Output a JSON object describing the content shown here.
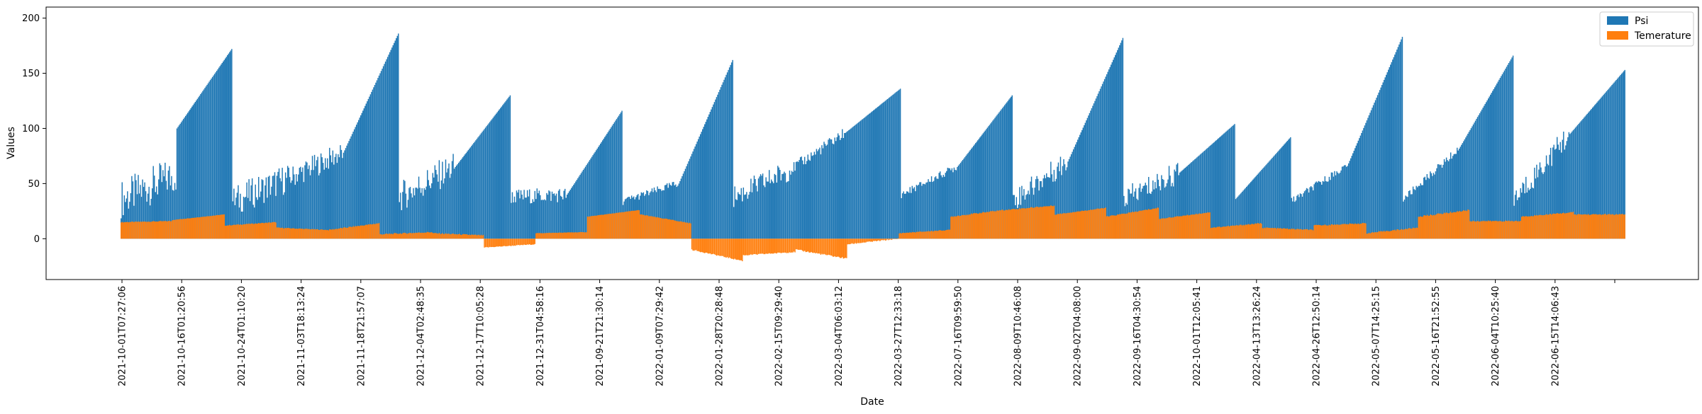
{
  "chart_data": {
    "type": "bar",
    "title": "",
    "xlabel": "Date",
    "ylabel": "Values",
    "ylim": [
      -37,
      210
    ],
    "yticks": [
      0,
      50,
      100,
      150,
      200
    ],
    "grid": false,
    "legend_position": "top-right",
    "x_tick_labels": [
      "2021-10-01T07:27:06",
      "2021-10-16T01:20:56",
      "2021-10-24T01:10:20",
      "2021-11-03T18:13:24",
      "2021-11-18T21:57:07",
      "2021-12-04T02:48:35",
      "2021-12-17T10:05:28",
      "2021-12-31T04:58:16",
      "2021-09-21T21:30:14",
      "2022-01-09T07:29:42",
      "2022-01-28T20:28:48",
      "2022-02-15T09:29:40",
      "2022-03-04T06:03:12",
      "2022-03-27T12:33:18",
      "2022-07-16T09:59:50",
      "2022-08-09T10:46:08",
      "2022-09-02T04:08:00",
      "2022-09-16T04:30:54",
      "2022-10-01T12:05:41",
      "2022-04-13T13:26:24",
      "2022-04-26T12:50:14",
      "2022-05-07T14:25:15",
      "2022-05-16T21:52:55",
      "2022-06-04T10:25:40",
      "2022-06-15T14:06:43"
    ],
    "series": [
      {
        "name": "Psi",
        "color": "#1f77b4",
        "segment_profiles": [
          [
            36,
            58,
            100
          ],
          [
            100,
            172,
            0
          ],
          [
            34,
            55,
            80
          ],
          [
            55,
            78,
            60
          ],
          [
            78,
            186,
            0
          ],
          [
            38,
            65,
            80
          ],
          [
            65,
            130,
            0
          ],
          [
            38,
            40,
            40
          ],
          [
            40,
            116,
            0
          ],
          [
            34,
            50,
            20
          ],
          [
            50,
            162,
            0
          ],
          [
            38,
            62,
            60
          ],
          [
            62,
            96,
            30
          ],
          [
            96,
            136,
            0
          ],
          [
            40,
            65,
            20
          ],
          [
            65,
            130,
            0
          ],
          [
            35,
            70,
            60
          ],
          [
            70,
            182,
            0
          ],
          [
            36,
            60,
            60
          ],
          [
            60,
            104,
            0
          ],
          [
            36,
            92,
            0
          ],
          [
            34,
            66,
            20
          ],
          [
            66,
            183,
            0
          ],
          [
            36,
            80,
            20
          ],
          [
            80,
            166,
            0
          ],
          [
            35,
            95,
            60
          ],
          [
            95,
            153,
            0
          ]
        ]
      },
      {
        "name": "Temerature",
        "color": "#ff7f0e",
        "segment_profiles": [
          [
            15,
            16,
            2
          ],
          [
            17,
            22,
            1
          ],
          [
            12,
            15,
            2
          ],
          [
            10,
            8,
            2
          ],
          [
            8,
            14,
            3
          ],
          [
            4,
            6,
            3
          ],
          [
            5,
            3,
            3
          ],
          [
            -8,
            -5,
            2
          ],
          [
            5,
            6,
            1
          ],
          [
            20,
            26,
            1
          ],
          [
            22,
            14,
            2
          ],
          [
            -10,
            -20,
            3
          ],
          [
            -15,
            -12,
            3
          ],
          [
            -10,
            -18,
            4
          ],
          [
            -5,
            0,
            3
          ],
          [
            5,
            8,
            2
          ],
          [
            20,
            26,
            3
          ],
          [
            26,
            30,
            3
          ],
          [
            22,
            28,
            2
          ],
          [
            20,
            28,
            3
          ],
          [
            18,
            24,
            2
          ],
          [
            10,
            14,
            3
          ],
          [
            10,
            8,
            3
          ],
          [
            12,
            14,
            3
          ],
          [
            5,
            10,
            3
          ],
          [
            20,
            26,
            4
          ],
          [
            16,
            16,
            3
          ],
          [
            20,
            24,
            3
          ],
          [
            22,
            22,
            3
          ]
        ]
      }
    ]
  }
}
